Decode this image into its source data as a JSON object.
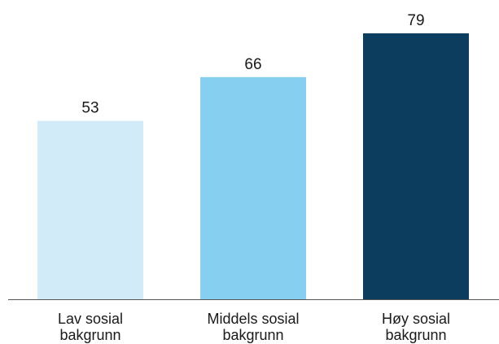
{
  "chart_data": {
    "type": "bar",
    "categories": [
      [
        "Lav sosial",
        "bakgrunn"
      ],
      [
        "Middels sosial",
        "bakgrunn"
      ],
      [
        "Høy sosial",
        "bakgrunn"
      ]
    ],
    "values": [
      53,
      66,
      79
    ],
    "colors": [
      "#d1ebf8",
      "#87cff0",
      "#0c3d5e"
    ],
    "axis_color": "#555555",
    "ylim": [
      0,
      90
    ],
    "grid": false,
    "title": "",
    "xlabel": "",
    "ylabel": ""
  }
}
